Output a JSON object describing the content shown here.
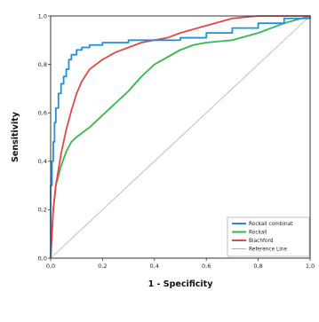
{
  "chart_data": {
    "type": "line",
    "xlabel": "1 - Specificity",
    "ylabel": "Sensitivity",
    "xlim": [
      0,
      1
    ],
    "ylim": [
      0,
      1
    ],
    "grid": false,
    "legend_position": "bottom-right",
    "x_ticks": [
      0.0,
      0.2,
      0.4,
      0.6,
      0.8,
      1.0
    ],
    "y_ticks": [
      0.0,
      0.2,
      0.4,
      0.6,
      0.8,
      1.0
    ],
    "x_tick_labels": [
      "0,0",
      "0,2",
      "0,4",
      "0,6",
      "0,8",
      "1,0"
    ],
    "y_tick_labels": [
      "0,0",
      "0,2",
      "0,4",
      "0,6",
      "0,8",
      "1,0"
    ],
    "series": [
      {
        "name": "Rockall combinat",
        "color": "#1f8fe0",
        "x": [
          0,
          0,
          0.005,
          0.01,
          0.015,
          0.02,
          0.03,
          0.04,
          0.05,
          0.06,
          0.07,
          0.08,
          0.1,
          0.12,
          0.15,
          0.2,
          0.25,
          0.3,
          0.4,
          0.5,
          0.6,
          0.7,
          0.8,
          0.9,
          1.0
        ],
        "y": [
          0,
          0.3,
          0.4,
          0.48,
          0.56,
          0.62,
          0.68,
          0.72,
          0.75,
          0.78,
          0.82,
          0.84,
          0.86,
          0.87,
          0.88,
          0.89,
          0.89,
          0.9,
          0.9,
          0.91,
          0.93,
          0.95,
          0.97,
          0.99,
          1.0
        ]
      },
      {
        "name": "Rockall",
        "color": "#33b84a",
        "x": [
          0,
          0.01,
          0.02,
          0.04,
          0.06,
          0.08,
          0.1,
          0.15,
          0.2,
          0.25,
          0.3,
          0.35,
          0.4,
          0.45,
          0.5,
          0.55,
          0.6,
          0.7,
          0.8,
          0.9,
          1.0
        ],
        "y": [
          0,
          0.2,
          0.3,
          0.38,
          0.44,
          0.48,
          0.5,
          0.54,
          0.59,
          0.64,
          0.69,
          0.75,
          0.8,
          0.83,
          0.86,
          0.88,
          0.89,
          0.9,
          0.93,
          0.97,
          1.0
        ]
      },
      {
        "name": "Blachford",
        "color": "#e84545",
        "x": [
          0,
          0.01,
          0.02,
          0.04,
          0.06,
          0.08,
          0.1,
          0.12,
          0.15,
          0.2,
          0.25,
          0.3,
          0.35,
          0.4,
          0.45,
          0.5,
          0.6,
          0.7,
          0.8,
          0.9,
          1.0
        ],
        "y": [
          0,
          0.2,
          0.3,
          0.43,
          0.53,
          0.61,
          0.68,
          0.73,
          0.78,
          0.82,
          0.85,
          0.87,
          0.89,
          0.9,
          0.91,
          0.93,
          0.96,
          0.99,
          1.0,
          1.0,
          1.0
        ]
      },
      {
        "name": "Reference Line",
        "color": "#b0b0b0",
        "x": [
          0,
          1
        ],
        "y": [
          0,
          1
        ]
      }
    ]
  }
}
